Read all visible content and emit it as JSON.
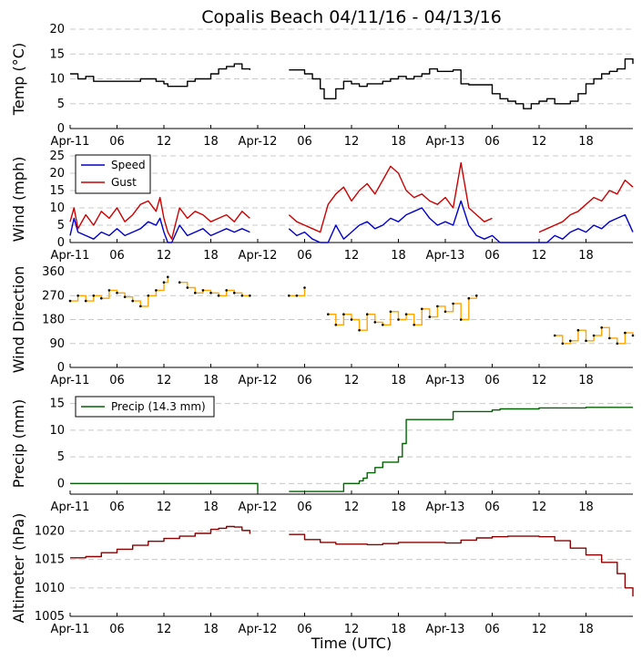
{
  "chart_data": {
    "type": "line",
    "title": "Copalis Beach 04/11/16 - 04/13/16",
    "xlabel": "Time (UTC)",
    "x_unit": "hours since Apr-11 00:00 UTC",
    "xlim": [
      0,
      72
    ],
    "xticks": [
      0,
      6,
      12,
      18,
      24,
      30,
      36,
      42,
      48,
      54,
      60,
      66
    ],
    "xtick_labels": [
      "Apr-11",
      "06",
      "12",
      "18",
      "Apr-12",
      "06",
      "12",
      "18",
      "Apr-13",
      "06",
      "12",
      "18"
    ],
    "panels": [
      {
        "id": "temp",
        "ylabel": "Temp (°C)",
        "ylim": [
          0,
          20
        ],
        "yticks": [
          0,
          5,
          10,
          15,
          20
        ],
        "ytick_labels": [
          "0",
          "5",
          "10",
          "15",
          "20"
        ],
        "series": [
          {
            "name": "Temp",
            "color": "#000000",
            "x": [
              0,
              1,
              2,
              3,
              6,
              9,
              10,
              11,
              12,
              12.5,
              14,
              15,
              16,
              18,
              19,
              20,
              21,
              22,
              23,
              24,
              28,
              29,
              30,
              31,
              32,
              32.5,
              33,
              34,
              35,
              36,
              37,
              38,
              40,
              41,
              42,
              43,
              44,
              45,
              46,
              47,
              48,
              49,
              50,
              51,
              52,
              53,
              54,
              55,
              56,
              57,
              58,
              59,
              60,
              61,
              62,
              63,
              64,
              65,
              66,
              67,
              68,
              69,
              70,
              71,
              72
            ],
            "y": [
              11,
              10,
              10.5,
              9.5,
              9.5,
              10,
              10,
              9.5,
              9,
              8.5,
              8.5,
              9.5,
              10,
              11,
              12,
              12.5,
              13,
              12,
              11.8,
              null,
              11.8,
              11.8,
              11,
              10,
              8,
              6,
              6,
              8,
              9.5,
              9,
              8.5,
              9,
              9.5,
              10,
              10.5,
              10,
              10.5,
              11,
              12,
              11.5,
              11.5,
              11.8,
              9,
              8.8,
              8.8,
              8.8,
              7,
              6,
              5.5,
              5,
              4,
              5,
              5.5,
              6,
              5,
              5,
              5.5,
              7,
              9,
              10,
              11,
              11.5,
              12,
              14,
              13
            ]
          }
        ]
      },
      {
        "id": "wind",
        "ylabel": "Wind (mph)",
        "ylim": [
          0,
          25
        ],
        "yticks": [
          0,
          5,
          10,
          15,
          20,
          25
        ],
        "ytick_labels": [
          "0",
          "5",
          "10",
          "15",
          "20",
          "25"
        ],
        "legend": [
          "Speed",
          "Gust"
        ],
        "series": [
          {
            "name": "Speed",
            "color": "#0000cc",
            "x": [
              0,
              0.5,
              1,
              2,
              3,
              4,
              5,
              6,
              7,
              8,
              9,
              10,
              11,
              11.5,
              12,
              12.5,
              13,
              14,
              15,
              16,
              17,
              18,
              19,
              20,
              21,
              22,
              23,
              24,
              28,
              29,
              30,
              31,
              32,
              33,
              34,
              35,
              36,
              37,
              38,
              39,
              40,
              41,
              42,
              43,
              44,
              45,
              46,
              47,
              48,
              49,
              50,
              51,
              52,
              53,
              54,
              55,
              56,
              57,
              58,
              59,
              60,
              61,
              62,
              63,
              64,
              65,
              66,
              67,
              68,
              69,
              70,
              71,
              72
            ],
            "y": [
              2,
              7,
              3,
              2,
              1,
              3,
              2,
              4,
              2,
              3,
              4,
              6,
              5,
              7,
              3,
              0,
              0,
              5,
              2,
              3,
              4,
              2,
              3,
              4,
              3,
              4,
              3,
              null,
              4,
              2,
              3,
              1,
              0,
              0,
              5,
              1,
              3,
              5,
              6,
              4,
              5,
              7,
              6,
              8,
              9,
              10,
              7,
              5,
              6,
              5,
              12,
              5,
              2,
              1,
              2,
              0,
              0,
              0,
              0,
              0,
              0,
              0,
              2,
              1,
              3,
              4,
              3,
              5,
              4,
              6,
              7,
              8,
              3
            ]
          },
          {
            "name": "Gust",
            "color": "#cc0000",
            "x": [
              0,
              0.5,
              1,
              2,
              3,
              4,
              5,
              6,
              7,
              8,
              9,
              10,
              11,
              11.5,
              12,
              12.5,
              13,
              14,
              15,
              16,
              17,
              18,
              19,
              20,
              21,
              22,
              23,
              24,
              28,
              29,
              30,
              31,
              32,
              33,
              34,
              35,
              36,
              37,
              38,
              39,
              40,
              41,
              42,
              43,
              44,
              45,
              46,
              47,
              48,
              49,
              50,
              51,
              52,
              53,
              54,
              55,
              56,
              57,
              58,
              59,
              60,
              61,
              62,
              63,
              64,
              65,
              66,
              67,
              68,
              69,
              70,
              71,
              72
            ],
            "y": [
              6,
              10,
              4,
              8,
              5,
              9,
              7,
              10,
              6,
              8,
              11,
              12,
              9,
              13,
              7,
              3,
              1,
              10,
              7,
              9,
              8,
              6,
              7,
              8,
              6,
              9,
              7,
              null,
              8,
              6,
              5,
              4,
              3,
              11,
              14,
              16,
              12,
              15,
              17,
              14,
              18,
              22,
              20,
              15,
              13,
              14,
              12,
              11,
              13,
              10,
              23,
              10,
              8,
              6,
              7,
              null,
              null,
              null,
              null,
              null,
              3,
              4,
              5,
              6,
              8,
              9,
              11,
              13,
              12,
              15,
              14,
              18,
              16
            ]
          }
        ]
      },
      {
        "id": "dir",
        "ylabel": "Wind Direction",
        "ylim": [
          0,
          360
        ],
        "yticks": [
          0,
          90,
          180,
          270,
          360
        ],
        "ytick_labels": [
          "0",
          "90",
          "180",
          "270",
          "360"
        ],
        "series": [
          {
            "name": "Direction",
            "color": "#ffa500",
            "x": [
              0,
              1,
              2,
              3,
              4,
              5,
              6,
              7,
              8,
              9,
              10,
              11,
              12,
              12.5,
              13,
              14,
              15,
              16,
              17,
              18,
              19,
              20,
              21,
              22,
              23,
              24,
              28,
              29,
              30,
              31,
              32,
              33,
              34,
              35,
              36,
              37,
              38,
              39,
              40,
              41,
              42,
              43,
              44,
              45,
              46,
              47,
              48,
              49,
              50,
              51,
              52,
              53,
              54,
              55,
              56,
              57,
              58,
              59,
              60,
              61,
              62,
              63,
              64,
              65,
              66,
              67,
              68,
              69,
              70,
              71,
              72
            ],
            "y": [
              250,
              270,
              250,
              270,
              260,
              290,
              280,
              265,
              250,
              230,
              270,
              290,
              320,
              340,
              null,
              320,
              300,
              280,
              290,
              280,
              270,
              290,
              280,
              270,
              270,
              null,
              270,
              270,
              300,
              null,
              null,
              200,
              160,
              200,
              180,
              140,
              200,
              170,
              160,
              210,
              180,
              200,
              160,
              220,
              190,
              230,
              210,
              240,
              180,
              260,
              270,
              null,
              null,
              null,
              null,
              null,
              null,
              null,
              null,
              null,
              120,
              90,
              100,
              140,
              100,
              120,
              150,
              110,
              90,
              130,
              120
            ]
          }
        ]
      },
      {
        "id": "precip",
        "ylabel": "Precip (mm)",
        "ylim": [
          -2,
          17
        ],
        "yticks": [
          0,
          5,
          10,
          15
        ],
        "ytick_labels": [
          "0",
          "5",
          "10",
          "15"
        ],
        "legend": [
          "Precip (14.3 mm)"
        ],
        "series": [
          {
            "name": "Precip (14.3 mm)",
            "color": "#006400",
            "x": [
              0,
              24,
              24,
              28,
              28,
              35,
              37,
              37.5,
              38,
              39,
              40,
              41,
              42,
              42.5,
              43,
              48,
              49,
              54,
              55,
              60,
              66,
              72
            ],
            "y": [
              0,
              0,
              -1.5,
              null,
              -1.5,
              0,
              0.5,
              1,
              2,
              3,
              4,
              4,
              5,
              7.5,
              12,
              12,
              13.5,
              13.8,
              14,
              14.2,
              14.3,
              14.3
            ]
          }
        ]
      },
      {
        "id": "alt",
        "ylabel": "Altimeter (hPa)",
        "ylim": [
          1005,
          1022
        ],
        "yticks": [
          1005,
          1010,
          1015,
          1020
        ],
        "ytick_labels": [
          "1005",
          "1010",
          "1015",
          "1020"
        ],
        "series": [
          {
            "name": "Altimeter",
            "color": "#8b0000",
            "x": [
              0,
              2,
              4,
              6,
              8,
              10,
              12,
              14,
              16,
              18,
              19,
              20,
              21,
              22,
              23,
              24,
              28,
              30,
              32,
              34,
              36,
              38,
              40,
              42,
              44,
              46,
              48,
              50,
              52,
              54,
              56,
              58,
              60,
              62,
              64,
              66,
              68,
              70,
              71,
              72
            ],
            "y": [
              1015.3,
              1015.5,
              1016.2,
              1016.8,
              1017.5,
              1018.2,
              1018.7,
              1019.1,
              1019.6,
              1020.3,
              1020.5,
              1020.8,
              1020.7,
              1020.1,
              1019.5,
              null,
              1019.4,
              1018.5,
              1018,
              1017.7,
              1017.7,
              1017.6,
              1017.8,
              1018,
              1018,
              1018,
              1017.9,
              1018.4,
              1018.8,
              1019,
              1019.1,
              1019.1,
              1019,
              1018.3,
              1017,
              1015.8,
              1014.5,
              1012.5,
              1010,
              1008.5
            ]
          }
        ]
      }
    ]
  }
}
